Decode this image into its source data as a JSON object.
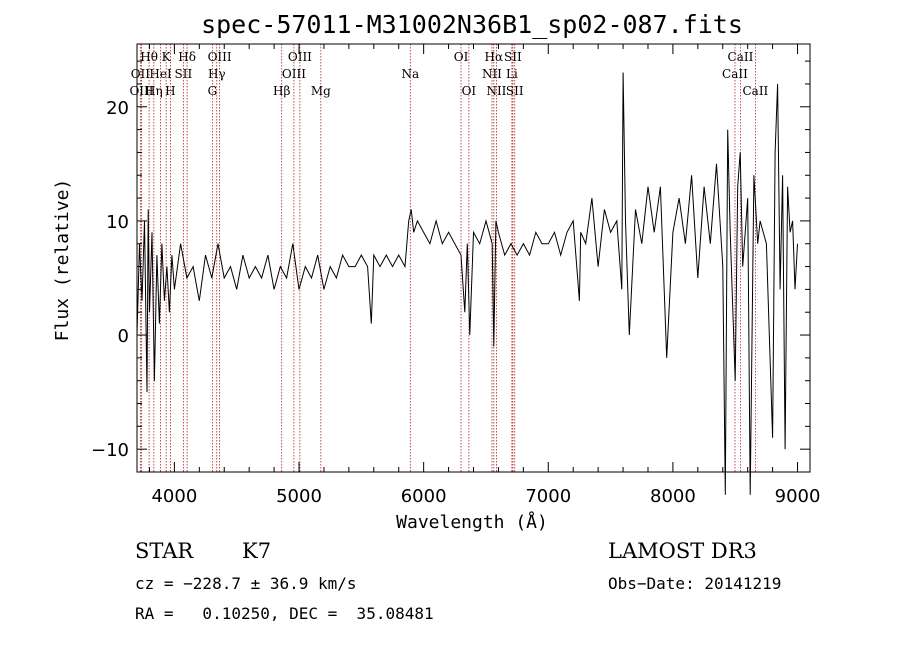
{
  "chart_data": {
    "type": "line",
    "title": "spec-57011-M31002N36B1_sp02-087.fits",
    "xlabel": "Wavelength (Å)",
    "ylabel": "Flux (relative)",
    "xlim": [
      3700,
      9100
    ],
    "ylim": [
      -12,
      25.5
    ],
    "x_ticks": [
      4000,
      5000,
      6000,
      7000,
      8000,
      9000
    ],
    "y_ticks": [
      -10,
      0,
      10,
      20
    ],
    "series": [
      {
        "x": [
          3700,
          3720,
          3740,
          3760,
          3780,
          3790,
          3800,
          3820,
          3840,
          3860,
          3880,
          3900,
          3920,
          3940,
          3960,
          3980,
          4000,
          4050,
          4100,
          4150,
          4200,
          4250,
          4300,
          4350,
          4400,
          4450,
          4500,
          4550,
          4600,
          4650,
          4700,
          4750,
          4800,
          4850,
          4900,
          4950,
          5000,
          5050,
          5100,
          5150,
          5200,
          5250,
          5300,
          5350,
          5400,
          5450,
          5500,
          5550,
          5580,
          5600,
          5650,
          5700,
          5750,
          5800,
          5850,
          5880,
          5900,
          5920,
          5950,
          6000,
          6050,
          6100,
          6150,
          6200,
          6250,
          6300,
          6330,
          6350,
          6370,
          6400,
          6450,
          6500,
          6550,
          6563,
          6580,
          6600,
          6650,
          6700,
          6750,
          6800,
          6850,
          6900,
          6950,
          7000,
          7050,
          7100,
          7150,
          7200,
          7250,
          7260,
          7300,
          7350,
          7400,
          7450,
          7500,
          7550,
          7590,
          7600,
          7620,
          7650,
          7700,
          7750,
          7800,
          7850,
          7900,
          7950,
          8000,
          8050,
          8100,
          8150,
          8200,
          8250,
          8300,
          8350,
          8400,
          8420,
          8440,
          8460,
          8500,
          8520,
          8540,
          8560,
          8600,
          8620,
          8650,
          8680,
          8700,
          8750,
          8800,
          8820,
          8840,
          8860,
          8880,
          8900,
          8920,
          8940,
          8960,
          8980,
          9000
        ],
        "y": [
          0,
          8,
          3,
          10,
          -5,
          11,
          2,
          9,
          -4,
          7,
          1,
          8,
          3,
          6,
          2,
          7,
          4,
          8,
          5,
          6,
          3,
          7,
          5,
          8,
          5,
          6,
          4,
          7,
          5,
          6,
          5,
          7,
          4,
          6,
          5,
          8,
          4,
          6,
          5,
          7,
          4,
          6,
          5,
          7,
          6,
          6,
          7,
          6,
          1,
          7,
          6,
          7,
          6,
          7,
          6,
          10,
          11,
          9,
          10,
          9,
          8,
          10,
          8,
          9,
          8,
          7,
          2,
          8,
          0,
          9,
          8,
          10,
          8,
          -1,
          10,
          9,
          7,
          8,
          7,
          8,
          7,
          9,
          8,
          8,
          9,
          7,
          9,
          10,
          3,
          9,
          8,
          12,
          6,
          11,
          9,
          10,
          4,
          23,
          10,
          0,
          11,
          8,
          13,
          9,
          13,
          -2,
          9,
          12,
          8,
          14,
          5,
          13,
          8,
          15,
          6,
          -14,
          18,
          9,
          -4,
          13,
          16,
          6,
          12,
          -14,
          14,
          8,
          10,
          8,
          -9,
          16,
          22,
          4,
          14,
          -10,
          13,
          9,
          10,
          4,
          8
        ],
        "color": "#000000"
      }
    ],
    "grid": false,
    "lines": [
      {
        "label": "Hθ",
        "x": 3797,
        "row": 0
      },
      {
        "label": "OII",
        "x": 3727,
        "row": 1
      },
      {
        "label": "OIII",
        "x": 3736,
        "row": 2
      },
      {
        "label": "K",
        "x": 3934,
        "row": 0
      },
      {
        "label": "HeI",
        "x": 3889,
        "row": 1
      },
      {
        "label": "Hη",
        "x": 3835,
        "row": 2
      },
      {
        "label": "Hδ",
        "x": 4102,
        "row": 0
      },
      {
        "label": "SII",
        "x": 4072,
        "row": 1
      },
      {
        "label": "H",
        "x": 3968,
        "row": 2
      },
      {
        "label": "OIII",
        "x": 4363,
        "row": 0
      },
      {
        "label": "Hγ",
        "x": 4340,
        "row": 1
      },
      {
        "label": "G",
        "x": 4305,
        "row": 2
      },
      {
        "label": "OIII",
        "x": 5007,
        "row": 0
      },
      {
        "label": "OIII",
        "x": 4959,
        "row": 1
      },
      {
        "label": "Hβ",
        "x": 4861,
        "row": 2
      },
      {
        "label": "Mg",
        "x": 5175,
        "row": 2
      },
      {
        "label": "Na",
        "x": 5893,
        "row": 1
      },
      {
        "label": "OI",
        "x": 6300,
        "row": 0
      },
      {
        "label": "OI",
        "x": 6363,
        "row": 2
      },
      {
        "label": "Hα",
        "x": 6563,
        "row": 0
      },
      {
        "label": "NII",
        "x": 6548,
        "row": 1
      },
      {
        "label": "NII",
        "x": 6584,
        "row": 2
      },
      {
        "label": "SII",
        "x": 6716,
        "row": 0
      },
      {
        "label": "Li",
        "x": 6708,
        "row": 1
      },
      {
        "label": "SII",
        "x": 6731,
        "row": 2
      },
      {
        "label": "CaII",
        "x": 8542,
        "row": 0
      },
      {
        "label": "CaII",
        "x": 8498,
        "row": 1
      },
      {
        "label": "CaII",
        "x": 8662,
        "row": 2
      }
    ]
  },
  "info": {
    "class_label": "STAR",
    "subclass": "K7",
    "survey": "LAMOST DR3",
    "cz": "cz = −228.7 ± 36.9 km/s",
    "obs_date": "Obs−Date: 20141219",
    "radec": "RA =   0.10250, DEC =  35.08481"
  }
}
